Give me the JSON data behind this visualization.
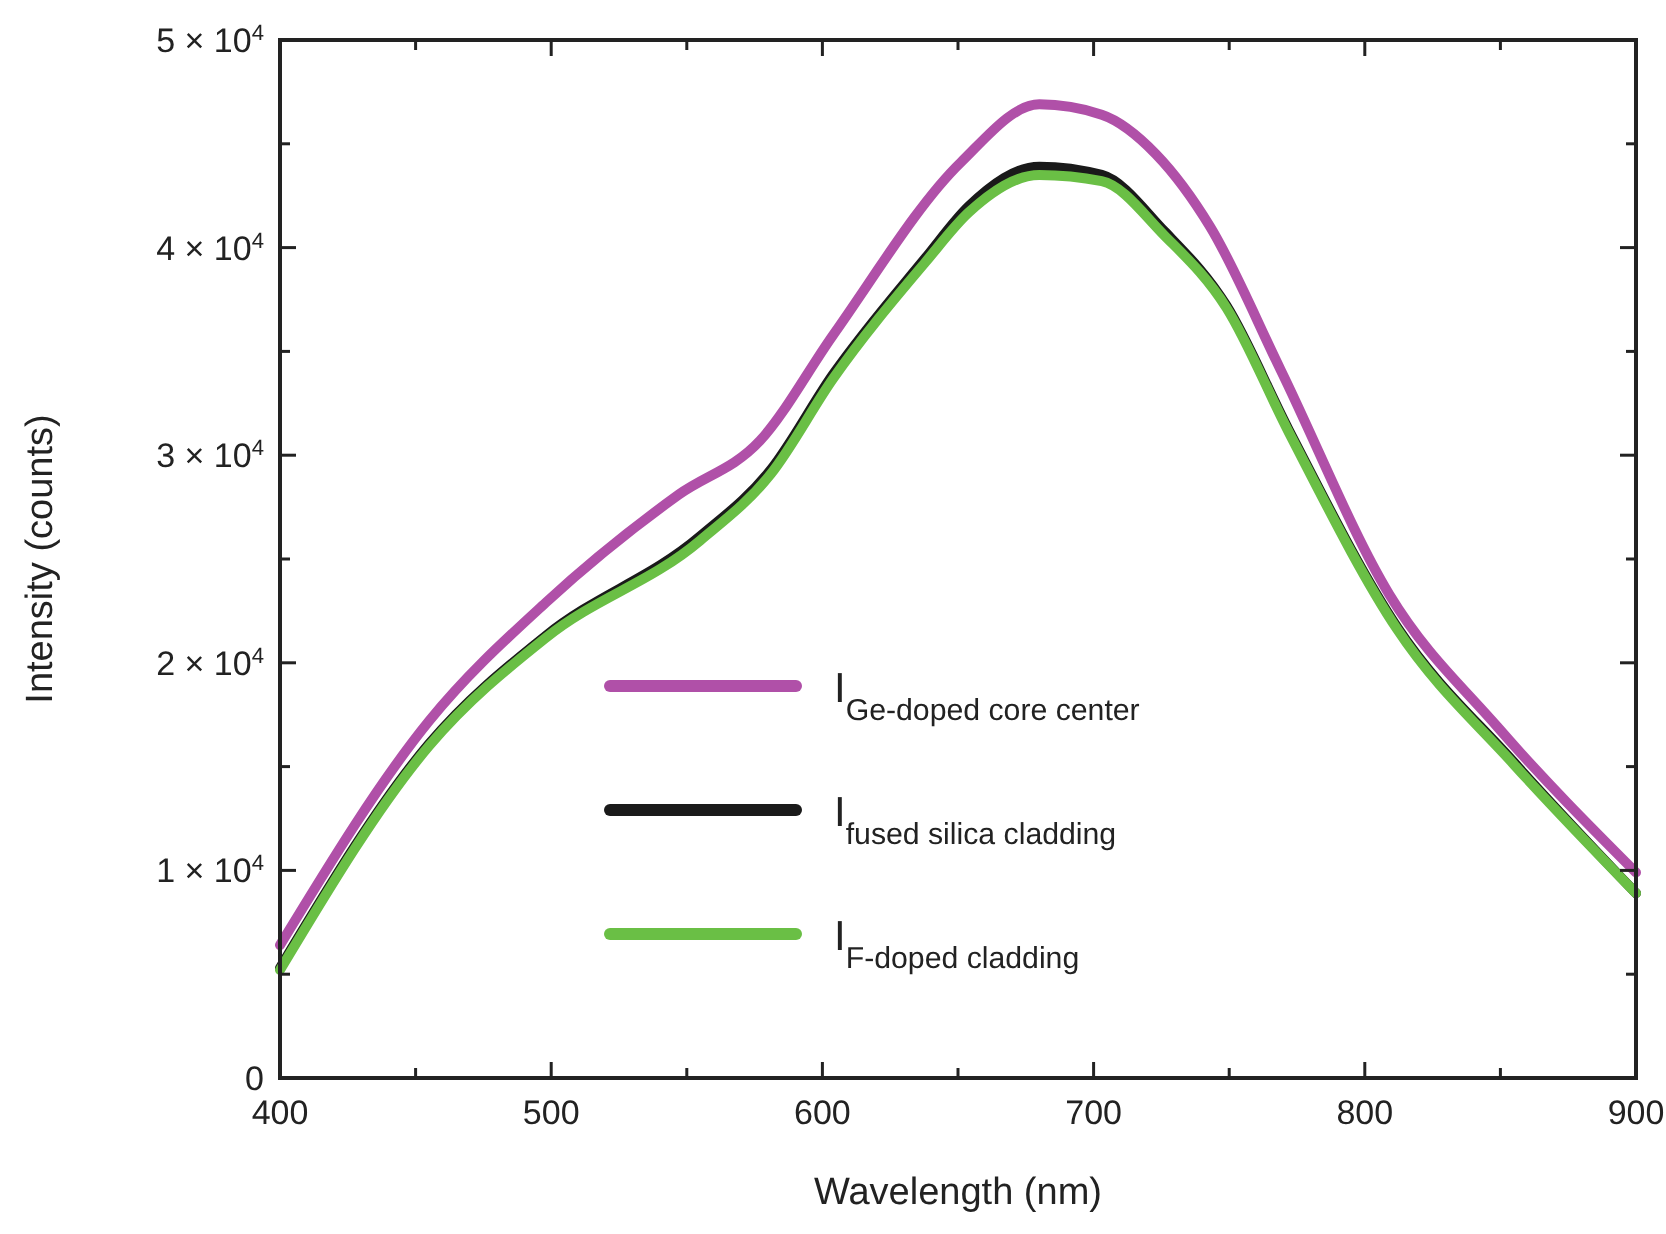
{
  "chart_data": {
    "type": "line",
    "xlabel": "Wavelength (nm)",
    "ylabel": "Intensity (counts)",
    "xlim": [
      400,
      900
    ],
    "ylim": [
      0,
      50000
    ],
    "xticks": [
      400,
      {
        "value": 450,
        "label": null
      },
      500,
      {
        "value": 550,
        "label": null
      },
      600,
      {
        "value": 650,
        "label": null
      },
      700,
      {
        "value": 750,
        "label": null
      },
      800,
      {
        "value": 850,
        "label": null
      },
      900
    ],
    "yticks": [
      {
        "value": 0,
        "label": "0"
      },
      {
        "value": 5000,
        "label": null
      },
      {
        "value": 10000,
        "label": "1 × 10$^{4}$"
      },
      {
        "value": 15000,
        "label": null
      },
      {
        "value": 20000,
        "label": "2 × 10$^{4}$"
      },
      {
        "value": 25000,
        "label": null
      },
      {
        "value": 30000,
        "label": "3 × 10$^{4}$"
      },
      {
        "value": 35000,
        "label": null
      },
      {
        "value": 40000,
        "label": "4 × 10$^{4}$"
      },
      {
        "value": 45000,
        "label": null
      },
      {
        "value": 50000,
        "label": "5 × 10$^{4}$"
      }
    ],
    "grid": false,
    "legend": "bottom",
    "marker": "none",
    "line_style": "solid",
    "series": [
      {
        "name": "I$_{Ge-doped core center}$",
        "color": "#b050a8",
        "x": [
          400,
          455,
          498,
          547,
          577,
          604,
          651,
          680,
          703,
          723,
          743,
          769,
          809,
          849,
          900
        ],
        "values": [
          6400,
          17200,
          22900,
          28100,
          30700,
          35800,
          44100,
          46900,
          46400,
          44500,
          41000,
          34100,
          23300,
          16900,
          9900
        ]
      },
      {
        "name": "I$_{fused silica cladding}$",
        "color": "#1a1a1a",
        "x": [
          400,
          455,
          498,
          555,
          581,
          604,
          638,
          654,
          680,
          703,
          726,
          749,
          772,
          812,
          855,
          900
        ],
        "values": [
          5300,
          16100,
          21300,
          26100,
          29300,
          33900,
          39500,
          42000,
          43900,
          43500,
          40800,
          37200,
          31200,
          21700,
          15200,
          8900
        ]
      },
      {
        "name": "I$_{F-doped cladding}$",
        "color": "#6abf45",
        "x": [
          400,
          455,
          498,
          555,
          581,
          604,
          638,
          654,
          680,
          703,
          726,
          749,
          772,
          812,
          855,
          900
        ],
        "values": [
          5200,
          16000,
          21200,
          25900,
          29100,
          33700,
          39300,
          41700,
          43500,
          43200,
          40600,
          37100,
          31100,
          21600,
          15100,
          8900
        ]
      }
    ]
  }
}
